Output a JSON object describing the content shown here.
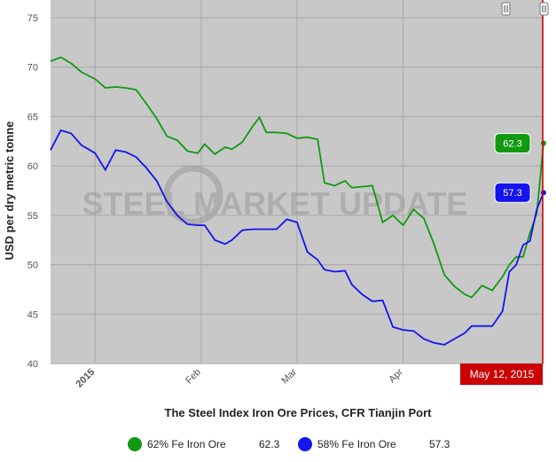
{
  "chart_data": {
    "type": "line",
    "title": "The Steel Index Iron Ore Prices, CFR Tianjin Port",
    "ylabel": "USD per dry metric tonne",
    "xlabel": "",
    "ylim": [
      40,
      75
    ],
    "y_ticks": [
      40,
      45,
      50,
      55,
      60,
      65,
      70,
      75
    ],
    "x_ticks": [
      {
        "label": "2015",
        "bold": true,
        "x": "2015-01-01"
      },
      {
        "label": "Feb",
        "bold": false,
        "x": "2015-02-01"
      },
      {
        "label": "Mar",
        "bold": false,
        "x": "2015-03-01"
      },
      {
        "label": "Apr",
        "bold": false,
        "x": "2015-04-01"
      }
    ],
    "xlim": [
      "2014-12-19",
      "2015-05-12"
    ],
    "grid": true,
    "legend": "bottom",
    "crosshair_label": "May 12, 2015",
    "watermark": "STEEL MARKET UPDATE",
    "series": [
      {
        "name": "62% Fe Iron Ore",
        "color": "#119911",
        "last_value": "62.3",
        "points": [
          [
            "2014-12-19",
            70.6
          ],
          [
            "2014-12-22",
            71.0
          ],
          [
            "2014-12-25",
            70.4
          ],
          [
            "2014-12-28",
            69.5
          ],
          [
            "2015-01-01",
            68.8
          ],
          [
            "2015-01-04",
            67.9
          ],
          [
            "2015-01-07",
            68.0
          ],
          [
            "2015-01-10",
            67.9
          ],
          [
            "2015-01-13",
            67.7
          ],
          [
            "2015-01-16",
            66.3
          ],
          [
            "2015-01-19",
            64.8
          ],
          [
            "2015-01-22",
            63.0
          ],
          [
            "2015-01-25",
            62.6
          ],
          [
            "2015-01-28",
            61.5
          ],
          [
            "2015-01-31",
            61.3
          ],
          [
            "2015-02-02",
            62.2
          ],
          [
            "2015-02-05",
            61.2
          ],
          [
            "2015-02-08",
            61.9
          ],
          [
            "2015-02-10",
            61.7
          ],
          [
            "2015-02-13",
            62.4
          ],
          [
            "2015-02-16",
            64.0
          ],
          [
            "2015-02-18",
            64.9
          ],
          [
            "2015-02-20",
            63.4
          ],
          [
            "2015-02-23",
            63.4
          ],
          [
            "2015-02-26",
            63.3
          ],
          [
            "2015-03-01",
            62.8
          ],
          [
            "2015-03-04",
            62.9
          ],
          [
            "2015-03-07",
            62.7
          ],
          [
            "2015-03-09",
            58.3
          ],
          [
            "2015-03-12",
            58.0
          ],
          [
            "2015-03-15",
            58.5
          ],
          [
            "2015-03-17",
            57.8
          ],
          [
            "2015-03-20",
            57.9
          ],
          [
            "2015-03-23",
            58.0
          ],
          [
            "2015-03-26",
            54.3
          ],
          [
            "2015-03-29",
            55.0
          ],
          [
            "2015-04-01",
            54.0
          ],
          [
            "2015-04-04",
            55.6
          ],
          [
            "2015-04-07",
            54.7
          ],
          [
            "2015-04-10",
            52.1
          ],
          [
            "2015-04-13",
            49.0
          ],
          [
            "2015-04-16",
            47.8
          ],
          [
            "2015-04-19",
            47.0
          ],
          [
            "2015-04-21",
            46.7
          ],
          [
            "2015-04-24",
            47.9
          ],
          [
            "2015-04-27",
            47.4
          ],
          [
            "2015-04-30",
            48.8
          ],
          [
            "2015-05-02",
            50.0
          ],
          [
            "2015-05-04",
            50.8
          ],
          [
            "2015-05-06",
            50.8
          ],
          [
            "2015-05-08",
            53.2
          ],
          [
            "2015-05-10",
            55.2
          ],
          [
            "2015-05-12",
            62.3
          ]
        ]
      },
      {
        "name": "58% Fe Iron Ore",
        "color": "#1414ee",
        "last_value": "57.3",
        "points": [
          [
            "2014-12-19",
            61.6
          ],
          [
            "2014-12-22",
            63.6
          ],
          [
            "2014-12-25",
            63.3
          ],
          [
            "2014-12-28",
            62.1
          ],
          [
            "2015-01-01",
            61.3
          ],
          [
            "2015-01-04",
            59.6
          ],
          [
            "2015-01-07",
            61.6
          ],
          [
            "2015-01-10",
            61.4
          ],
          [
            "2015-01-13",
            60.9
          ],
          [
            "2015-01-16",
            59.8
          ],
          [
            "2015-01-19",
            58.5
          ],
          [
            "2015-01-22",
            56.4
          ],
          [
            "2015-01-25",
            55.0
          ],
          [
            "2015-01-28",
            54.1
          ],
          [
            "2015-01-31",
            54.0
          ],
          [
            "2015-02-02",
            54.0
          ],
          [
            "2015-02-05",
            52.5
          ],
          [
            "2015-02-08",
            52.1
          ],
          [
            "2015-02-10",
            52.5
          ],
          [
            "2015-02-13",
            53.5
          ],
          [
            "2015-02-16",
            53.6
          ],
          [
            "2015-02-18",
            53.6
          ],
          [
            "2015-02-20",
            53.6
          ],
          [
            "2015-02-23",
            53.6
          ],
          [
            "2015-02-26",
            54.6
          ],
          [
            "2015-03-01",
            54.3
          ],
          [
            "2015-03-04",
            51.3
          ],
          [
            "2015-03-07",
            50.5
          ],
          [
            "2015-03-09",
            49.5
          ],
          [
            "2015-03-12",
            49.3
          ],
          [
            "2015-03-15",
            49.4
          ],
          [
            "2015-03-17",
            48.0
          ],
          [
            "2015-03-20",
            47.0
          ],
          [
            "2015-03-23",
            46.3
          ],
          [
            "2015-03-26",
            46.4
          ],
          [
            "2015-03-29",
            43.7
          ],
          [
            "2015-04-01",
            43.4
          ],
          [
            "2015-04-04",
            43.3
          ],
          [
            "2015-04-07",
            42.5
          ],
          [
            "2015-04-10",
            42.1
          ],
          [
            "2015-04-13",
            41.9
          ],
          [
            "2015-04-16",
            42.5
          ],
          [
            "2015-04-19",
            43.1
          ],
          [
            "2015-04-21",
            43.8
          ],
          [
            "2015-04-24",
            43.8
          ],
          [
            "2015-04-27",
            43.8
          ],
          [
            "2015-04-30",
            45.3
          ],
          [
            "2015-05-02",
            49.3
          ],
          [
            "2015-05-04",
            50.0
          ],
          [
            "2015-05-06",
            52.0
          ],
          [
            "2015-05-08",
            52.4
          ],
          [
            "2015-05-10",
            55.6
          ],
          [
            "2015-05-12",
            57.3
          ]
        ]
      }
    ]
  }
}
